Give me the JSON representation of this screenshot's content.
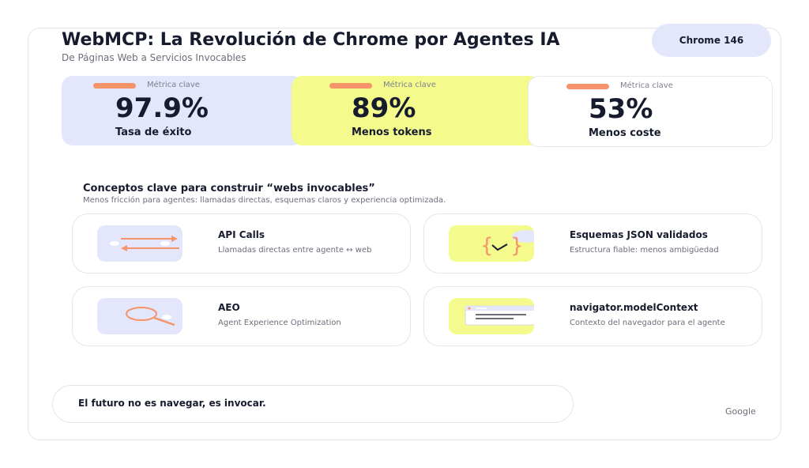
{
  "header": {
    "title": "WebMCP: La Revolución de Chrome por Agentes IA",
    "subtitle": "De Páginas Web a Servicios Invocables",
    "badge": "Chrome 146"
  },
  "metrics": [
    {
      "label": "Métrica clave",
      "value": "97.9%",
      "description": "Tasa de éxito"
    },
    {
      "label": "Métrica clave",
      "value": "89%",
      "description": "Menos tokens"
    },
    {
      "label": "Métrica clave",
      "value": "53%",
      "description": "Menos coste"
    }
  ],
  "concepts": {
    "title": "Conceptos clave para construir “webs invocables”",
    "subtitle": "Menos fricción para agentes: llamadas directas, esquemas claros y experiencia optimizada.",
    "cards": [
      {
        "title": "API Calls",
        "description": "Llamadas directas entre agente ↔ web",
        "icon": "arrows-exchange-icon"
      },
      {
        "title": "Esquemas JSON validados",
        "description": "Estructura fiable: menos ambigüedad",
        "icon": "json-check-icon"
      },
      {
        "title": "AEO",
        "description": "Agent Experience Optimization",
        "icon": "magnifier-icon"
      },
      {
        "title": "navigator.modelContext",
        "description": "Contexto del navegador para el agente",
        "icon": "browser-window-icon"
      }
    ]
  },
  "footer": {
    "tagline": "El futuro no es navegar, es invocar.",
    "brand": "Google"
  },
  "colors": {
    "lavender": "#e4e6fb",
    "yellow": "#f4fb8c",
    "accent": "#f5936b",
    "text": "#161b2e"
  }
}
